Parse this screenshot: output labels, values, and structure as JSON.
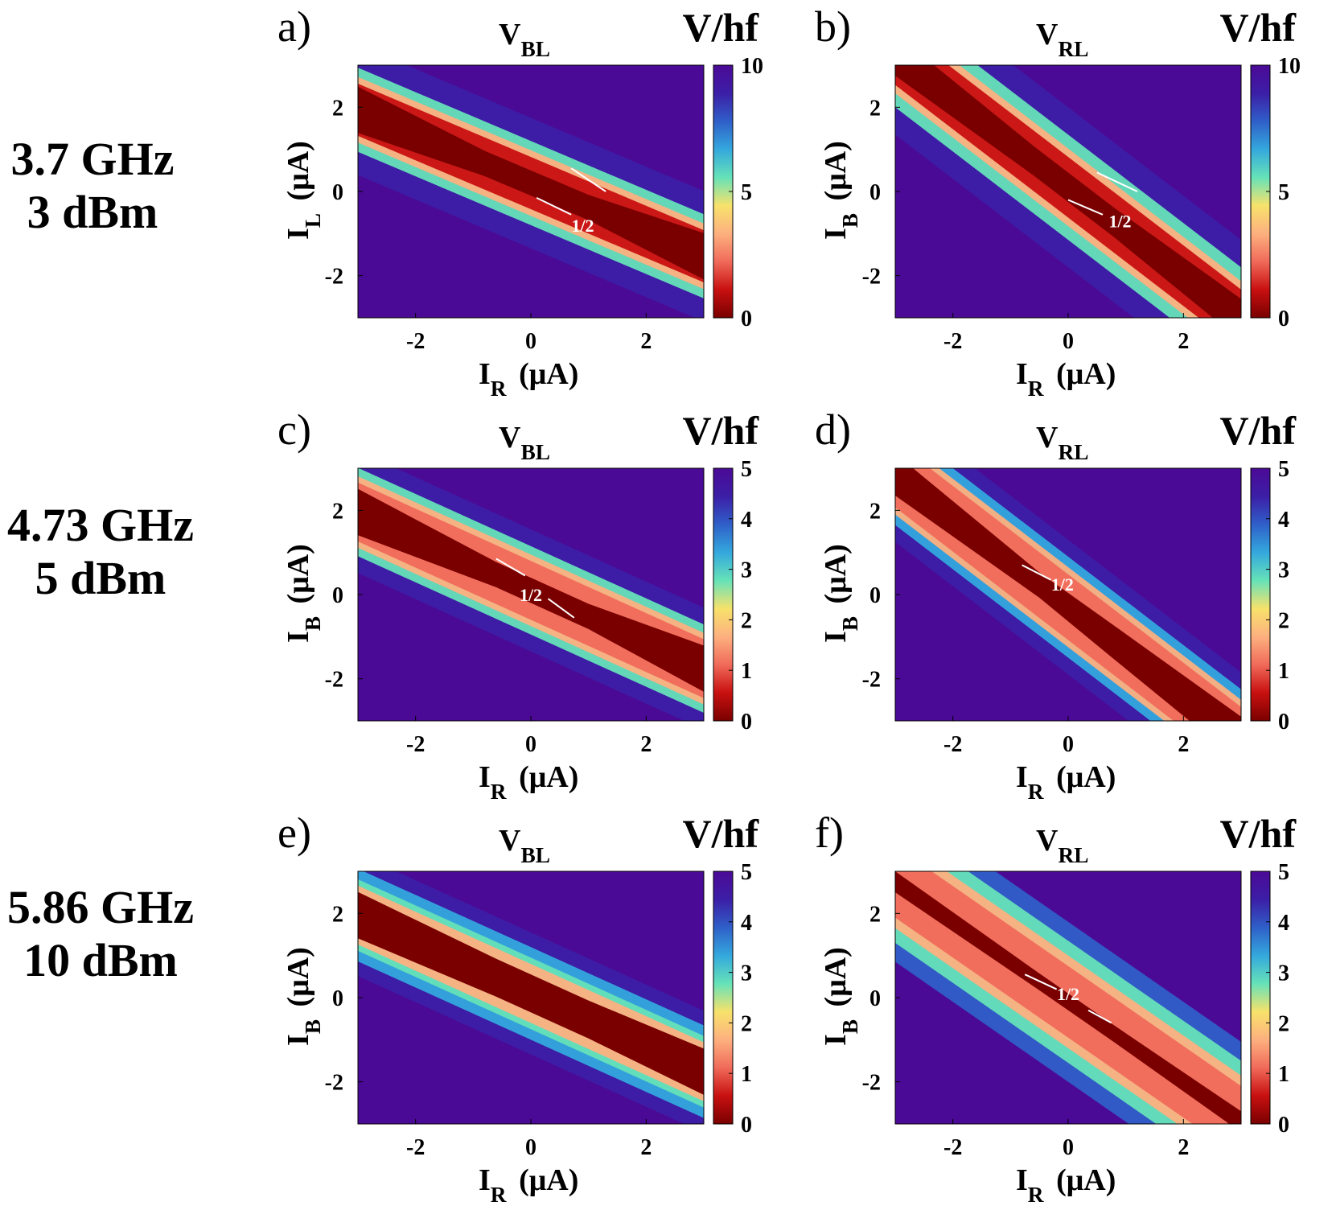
{
  "figure": {
    "rows": [
      {
        "freq": "3.7 GHz",
        "power": "3 dBm"
      },
      {
        "freq": "4.73 GHz",
        "power": "5 dBm"
      },
      {
        "freq": "5.86 GHz",
        "power": "10 dBm"
      }
    ]
  },
  "colormap": [
    "#7a0000",
    "#c81010",
    "#f06a5a",
    "#fdb07f",
    "#f7e26b",
    "#66e2b8",
    "#34a8dd",
    "#2f5fc8",
    "#3c1ea6",
    "#4b0a96"
  ],
  "chart_data": [
    {
      "type": "heatmap",
      "panel_label": "a)",
      "title_main": "V",
      "title_sub": "BL",
      "ylabel_main": "I",
      "ylabel_sub": "L",
      "xlabel_main": "I",
      "xlabel_sub": "R",
      "units": "(μA)",
      "colorbar_label": "V/hf",
      "xlim": [
        -3,
        3
      ],
      "ylim": [
        -3,
        3
      ],
      "xticks": [
        -2,
        0,
        2
      ],
      "yticks": [
        -2,
        0,
        2
      ],
      "clim": [
        0,
        10
      ],
      "colorbar_ticks": [
        0,
        5,
        10
      ],
      "annotation": "1/2"
    },
    {
      "type": "heatmap",
      "panel_label": "b)",
      "title_main": "V",
      "title_sub": "RL",
      "ylabel_main": "I",
      "ylabel_sub": "B",
      "xlabel_main": "I",
      "xlabel_sub": "R",
      "units": "(μA)",
      "colorbar_label": "V/hf",
      "xlim": [
        -3,
        3
      ],
      "ylim": [
        -3,
        3
      ],
      "xticks": [
        -2,
        0,
        2
      ],
      "yticks": [
        -2,
        0,
        2
      ],
      "clim": [
        0,
        10
      ],
      "colorbar_ticks": [
        0,
        5,
        10
      ],
      "annotation": "1/2"
    },
    {
      "type": "heatmap",
      "panel_label": "c)",
      "title_main": "V",
      "title_sub": "BL",
      "ylabel_main": "I",
      "ylabel_sub": "B",
      "xlabel_main": "I",
      "xlabel_sub": "R",
      "units": "(μA)",
      "colorbar_label": "V/hf",
      "xlim": [
        -3,
        3
      ],
      "ylim": [
        -3,
        3
      ],
      "xticks": [
        -2,
        0,
        2
      ],
      "yticks": [
        -2,
        0,
        2
      ],
      "clim": [
        0,
        5
      ],
      "colorbar_ticks": [
        0,
        1,
        2,
        3,
        4,
        5
      ],
      "annotation": "1/2"
    },
    {
      "type": "heatmap",
      "panel_label": "d)",
      "title_main": "V",
      "title_sub": "RL",
      "ylabel_main": "I",
      "ylabel_sub": "B",
      "xlabel_main": "I",
      "xlabel_sub": "R",
      "units": "(μA)",
      "colorbar_label": "V/hf",
      "xlim": [
        -3,
        3
      ],
      "ylim": [
        -3,
        3
      ],
      "xticks": [
        -2,
        0,
        2
      ],
      "yticks": [
        -2,
        0,
        2
      ],
      "clim": [
        0,
        5
      ],
      "colorbar_ticks": [
        0,
        1,
        2,
        3,
        4,
        5
      ],
      "annotation": "1/2"
    },
    {
      "type": "heatmap",
      "panel_label": "e)",
      "title_main": "V",
      "title_sub": "BL",
      "ylabel_main": "I",
      "ylabel_sub": "B",
      "xlabel_main": "I",
      "xlabel_sub": "R",
      "units": "(μA)",
      "colorbar_label": "V/hf",
      "xlim": [
        -3,
        3
      ],
      "ylim": [
        -3,
        3
      ],
      "xticks": [
        -2,
        0,
        2
      ],
      "yticks": [
        -2,
        0,
        2
      ],
      "clim": [
        0,
        5
      ],
      "colorbar_ticks": [
        0,
        1,
        2,
        3,
        4,
        5
      ],
      "annotation": ""
    },
    {
      "type": "heatmap",
      "panel_label": "f)",
      "title_main": "V",
      "title_sub": "RL",
      "ylabel_main": "I",
      "ylabel_sub": "B",
      "xlabel_main": "I",
      "xlabel_sub": "R",
      "units": "(μA)",
      "colorbar_label": "V/hf",
      "xlim": [
        -3,
        3
      ],
      "ylim": [
        -3,
        3
      ],
      "xticks": [
        -2,
        0,
        2
      ],
      "yticks": [
        -2,
        0,
        2
      ],
      "clim": [
        0,
        5
      ],
      "colorbar_ticks": [
        0,
        1,
        2,
        3,
        4,
        5
      ],
      "annotation": "1/2"
    }
  ]
}
